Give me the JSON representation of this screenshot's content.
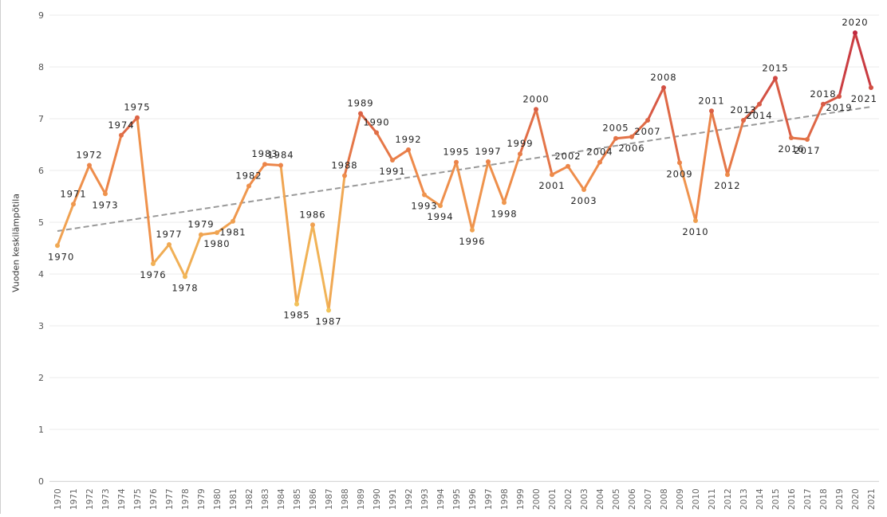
{
  "chart_data": {
    "type": "line",
    "title": "",
    "xlabel": "",
    "ylabel": "Vuoden keskilämpötila",
    "ylim": [
      0,
      9
    ],
    "yticks": [
      "0",
      "1",
      "2",
      "3",
      "4",
      "5",
      "6",
      "7",
      "8",
      "9"
    ],
    "grid": "horizontal",
    "legend": "none",
    "trendline": {
      "style": "dashed",
      "color": "#999999",
      "start": 4.83,
      "end": 7.23
    },
    "color_scale": {
      "low": "#f2c55c",
      "mid": "#ee8a4a",
      "high": "#c0283f"
    },
    "x": [
      "1970",
      "1971",
      "1972",
      "1973",
      "1974",
      "1975",
      "1976",
      "1977",
      "1978",
      "1979",
      "1980",
      "1981",
      "1982",
      "1983",
      "1984",
      "1985",
      "1986",
      "1987",
      "1988",
      "1989",
      "1990",
      "1991",
      "1992",
      "1993",
      "1994",
      "1995",
      "1996",
      "1997",
      "1998",
      "1999",
      "2000",
      "2001",
      "2002",
      "2003",
      "2004",
      "2005",
      "2006",
      "2007",
      "2008",
      "2009",
      "2010",
      "2011",
      "2012",
      "2013",
      "2014",
      "2015",
      "2016",
      "2017",
      "2018",
      "2019",
      "2020",
      "2021"
    ],
    "series": [
      {
        "values": [
          4.55,
          5.35,
          6.1,
          5.55,
          6.68,
          7.02,
          4.2,
          4.57,
          3.95,
          4.76,
          4.8,
          5.02,
          5.7,
          6.12,
          6.1,
          3.42,
          4.95,
          3.3,
          5.9,
          7.1,
          6.73,
          6.2,
          6.4,
          5.53,
          5.32,
          6.16,
          4.85,
          6.17,
          5.38,
          6.32,
          7.18,
          5.92,
          6.08,
          5.63,
          6.16,
          6.62,
          6.65,
          6.97,
          7.6,
          6.15,
          5.03,
          7.15,
          5.92,
          6.97,
          7.28,
          7.78,
          6.63,
          6.6,
          7.28,
          7.43,
          8.66,
          7.6
        ]
      }
    ]
  }
}
